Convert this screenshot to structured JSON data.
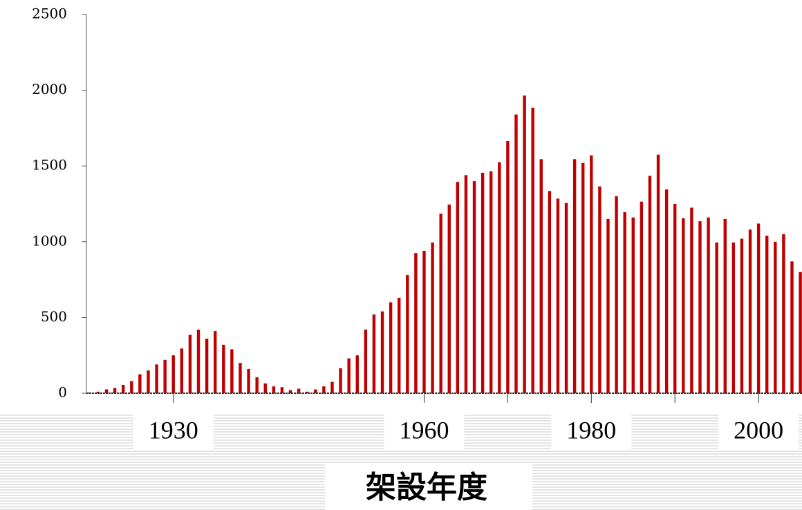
{
  "chart_data": {
    "type": "bar",
    "x_label": "架設年度",
    "color": "#c00000",
    "x": [
      1920,
      1921,
      1922,
      1923,
      1924,
      1925,
      1926,
      1927,
      1928,
      1929,
      1930,
      1931,
      1932,
      1933,
      1934,
      1935,
      1936,
      1937,
      1938,
      1939,
      1940,
      1941,
      1942,
      1943,
      1944,
      1945,
      1946,
      1947,
      1948,
      1949,
      1950,
      1951,
      1952,
      1953,
      1954,
      1955,
      1956,
      1957,
      1958,
      1959,
      1960,
      1961,
      1962,
      1963,
      1964,
      1965,
      1966,
      1967,
      1968,
      1969,
      1970,
      1971,
      1972,
      1973,
      1974,
      1975,
      1976,
      1977,
      1978,
      1979,
      1980,
      1981,
      1982,
      1983,
      1984,
      1985,
      1986,
      1987,
      1988,
      1989,
      1990,
      1991,
      1992,
      1993,
      1994,
      1995,
      1996,
      1997,
      1998,
      1999,
      2000,
      2001,
      2002,
      2003,
      2004,
      2005
    ],
    "values": [
      5,
      10,
      25,
      35,
      55,
      80,
      125,
      150,
      190,
      220,
      250,
      295,
      385,
      420,
      360,
      410,
      320,
      290,
      200,
      160,
      105,
      65,
      45,
      40,
      20,
      30,
      10,
      25,
      45,
      75,
      165,
      230,
      250,
      420,
      520,
      540,
      600,
      630,
      780,
      925,
      940,
      995,
      1185,
      1245,
      1395,
      1440,
      1400,
      1455,
      1465,
      1525,
      1665,
      1840,
      1965,
      1885,
      1545,
      1335,
      1285,
      1255,
      1545,
      1520,
      1570,
      1365,
      1150,
      1300,
      1195,
      1160,
      1265,
      1435,
      1575,
      1345,
      1250,
      1155,
      1225,
      1135,
      1160,
      995,
      1150,
      995,
      1020,
      1080,
      1120,
      1040,
      1000,
      1050,
      870,
      800
    ],
    "xlim": [
      1919.6,
      2005.2
    ],
    "xticks": [
      1930,
      1960,
      1980,
      2000
    ],
    "xminorticks": [
      1970,
      1990
    ],
    "ylim": [
      0,
      2500
    ],
    "yticks": [
      0,
      500,
      1000,
      1500,
      2000,
      2500
    ]
  }
}
